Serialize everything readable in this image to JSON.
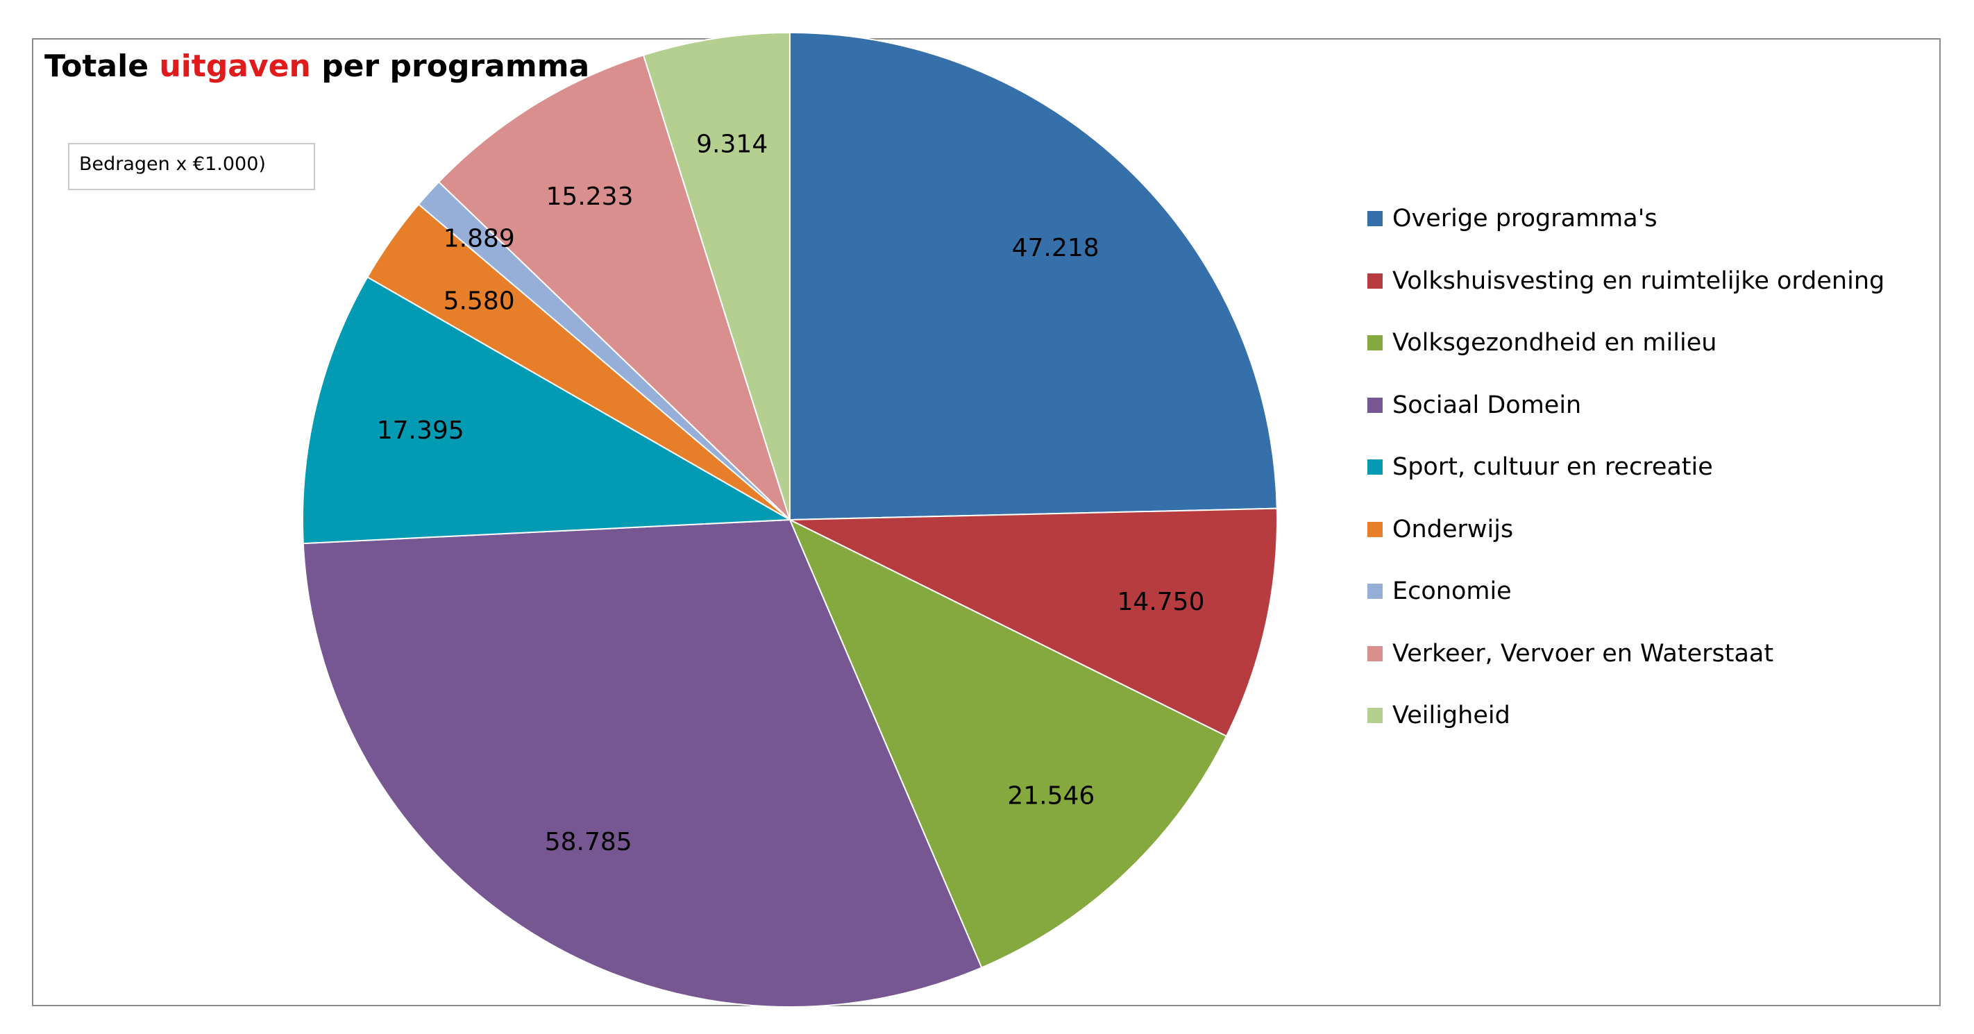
{
  "title": {
    "part1": "Totale",
    "part2": "uitgaven",
    "part3": "per programma",
    "accent_color": "#e01b1b"
  },
  "units_note": "Bedragen x €1.000)",
  "chart_data": {
    "type": "pie",
    "title": "Totale uitgaven per programma",
    "start_angle_deg": 0,
    "direction": "clockwise",
    "legend_position": "right",
    "slices": [
      {
        "name": "Overige programma's",
        "value": 47218,
        "label": "47.218",
        "color": "#3670ab"
      },
      {
        "name": "Volkshuisvesting en ruimtelijke ordening",
        "value": 14750,
        "label": "14.750",
        "color": "#b63c3f"
      },
      {
        "name": "Volksgezondheid en milieu",
        "value": 21546,
        "label": "21.546",
        "color": "#85a83f"
      },
      {
        "name": "Sociaal Domein",
        "value": 58785,
        "label": "58.785",
        "color": "#765791"
      },
      {
        "name": "Sport, cultuur en recreatie",
        "value": 17395,
        "label": "17.395",
        "color": "#039bb4"
      },
      {
        "name": "Onderwijs",
        "value": 5580,
        "label": "5.580",
        "color": "#e67e2a"
      },
      {
        "name": "Economie",
        "value": 1889,
        "label": "1.889",
        "color": "#95afd8"
      },
      {
        "name": "Verkeer, Vervoer en Waterstaat",
        "value": 15233,
        "label": "15.233",
        "color": "#d98f8e"
      },
      {
        "name": "Veiligheid",
        "value": 9314,
        "label": "9.314",
        "color": "#b4cf8f"
      }
    ]
  }
}
